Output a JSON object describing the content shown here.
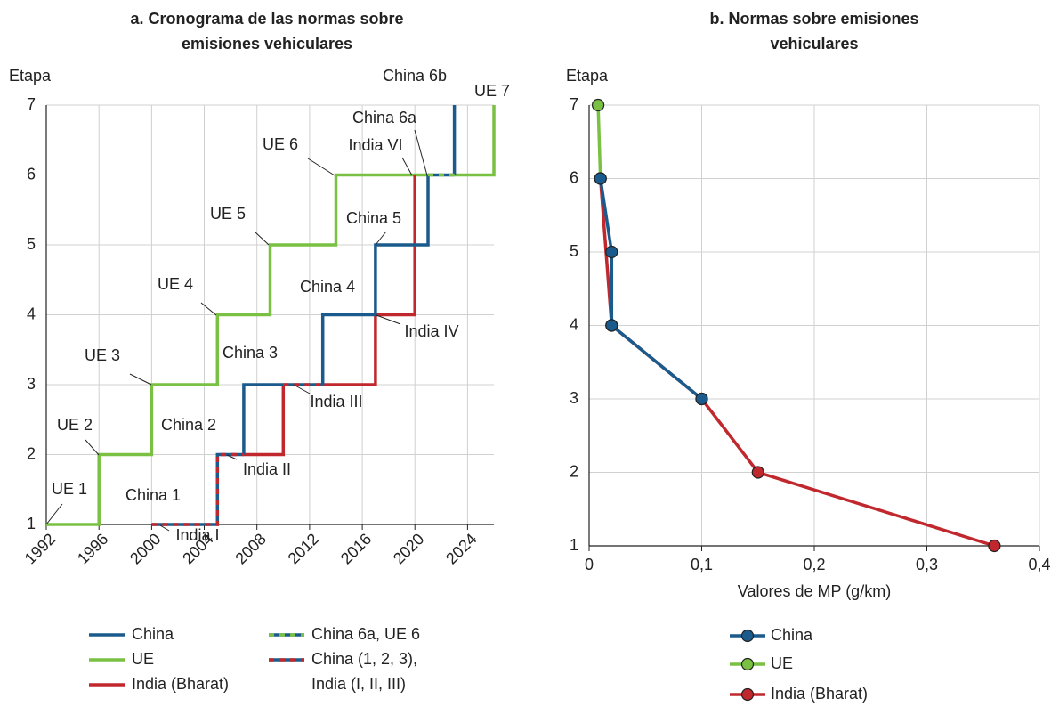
{
  "chart_data": [
    {
      "type": "line",
      "title": [
        "a. Cronograma de las normas sobre",
        "emisiones vehiculares"
      ],
      "ylabel": "Etapa",
      "xlim": [
        1992,
        2026
      ],
      "ylim": [
        1,
        7
      ],
      "xticks": [
        1992,
        1996,
        2000,
        2004,
        2008,
        2012,
        2016,
        2020,
        2024
      ],
      "yticks": [
        1,
        2,
        3,
        4,
        5,
        6,
        7
      ],
      "grid": true,
      "series": [
        {
          "name": "China",
          "color": "#1b5a8c",
          "x": [
            2007,
            2007,
            2010,
            null,
            2013,
            2013,
            2017,
            2017,
            2021,
            2021,
            null,
            2023,
            2023
          ],
          "values": [
            2,
            3,
            3,
            null,
            3,
            4,
            4,
            5,
            5,
            6,
            null,
            6,
            7
          ]
        },
        {
          "name": "UE",
          "color": "#7ac143",
          "x": [
            1992,
            1996,
            1996,
            2000,
            2000,
            2005,
            2005,
            2009,
            2009,
            2014,
            2014,
            2021,
            null,
            2023,
            2026,
            2026
          ],
          "values": [
            1,
            1,
            2,
            2,
            3,
            3,
            4,
            4,
            5,
            5,
            6,
            6,
            null,
            6,
            6,
            7
          ]
        },
        {
          "name": "India (Bharat)",
          "color": "#c0282d",
          "x": [
            2007,
            2010,
            2010,
            null,
            2013,
            2017,
            2017,
            2020,
            2020
          ],
          "values": [
            2,
            2,
            3,
            null,
            3,
            3,
            4,
            4,
            6
          ]
        },
        {
          "name": "China 6a, UE 6",
          "colors": [
            "#1b5a8c",
            "#7ac143"
          ],
          "x": [
            2021,
            2023
          ],
          "values": [
            6,
            6
          ]
        },
        {
          "name": "China (1, 2, 3), India (I, II, III)",
          "colors": [
            "#1b5a8c",
            "#c0282d"
          ],
          "x": [
            2000,
            2005,
            2005,
            2007,
            null,
            2010,
            2013
          ],
          "values": [
            1,
            1,
            2,
            2,
            null,
            3,
            3
          ]
        }
      ],
      "annotations": [
        "UE 1",
        "UE 2",
        "UE 3",
        "UE 4",
        "UE 5",
        "UE 6",
        "UE 7",
        "China 6b",
        "China 6a",
        "India VI",
        "China 5",
        "China 4",
        "India IV",
        "China 3",
        "India III",
        "China 2",
        "India II",
        "China 1",
        "India I"
      ]
    },
    {
      "type": "line",
      "title": [
        "b. Normas sobre emisiones",
        "vehiculares"
      ],
      "ylabel": "Etapa",
      "xlabel": "Valores de MP (g/km)",
      "xlim": [
        0,
        0.4
      ],
      "ylim": [
        1,
        7
      ],
      "xticks": [
        0,
        {
          "value": 0.1,
          "label": "0,1"
        },
        {
          "value": 0.2,
          "label": "0,2"
        },
        {
          "value": 0.3,
          "label": "0,3"
        },
        {
          "value": 0.4,
          "label": "0,4"
        }
      ],
      "yticks": [
        1,
        2,
        3,
        4,
        5,
        6,
        7
      ],
      "grid": true,
      "markers": true,
      "series": [
        {
          "name": "China",
          "color": "#1b5a8c",
          "x": [
            0.01,
            0.02,
            0.02,
            0.1
          ],
          "values": [
            6,
            5,
            4,
            3
          ]
        },
        {
          "name": "UE",
          "color": "#7ac143",
          "x": [
            0.008,
            0.01
          ],
          "values": [
            7,
            6
          ]
        },
        {
          "name": "India (Bharat)",
          "color": "#c0282d",
          "x": [
            0.36,
            0.15,
            0.1,
            0.02,
            0.01
          ],
          "values": [
            1,
            2,
            3,
            4,
            6
          ]
        }
      ]
    }
  ]
}
